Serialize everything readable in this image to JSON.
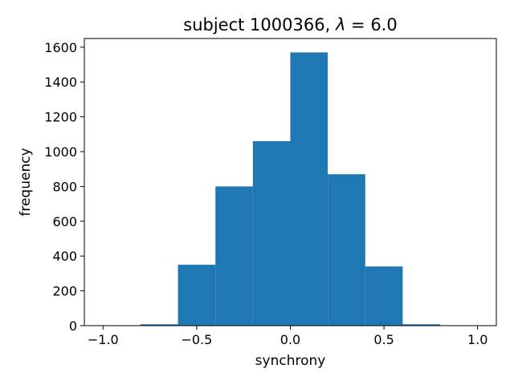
{
  "chart_data": {
    "type": "bar",
    "title_prefix": "subject 1000366, ",
    "title_lambda": "λ",
    "title_suffix": " = 6.0",
    "xlabel": "synchrony",
    "ylabel": "frequency",
    "xlim": [
      -1.1,
      1.1
    ],
    "ylim": [
      0,
      1650
    ],
    "bin_edges": [
      -1.0,
      -0.8,
      -0.6,
      -0.4,
      -0.2,
      0.0,
      0.2,
      0.4,
      0.6,
      0.8,
      1.0
    ],
    "counts": [
      0,
      8,
      350,
      800,
      1060,
      1570,
      870,
      340,
      8,
      0
    ],
    "bar_color": "#1f77b4",
    "xticks": [
      -1.0,
      -0.5,
      0.0,
      0.5,
      1.0
    ],
    "xtick_labels": [
      "−1.0",
      "−0.5",
      "0.0",
      "0.5",
      "1.0"
    ],
    "yticks": [
      0,
      200,
      400,
      600,
      800,
      1000,
      1200,
      1400,
      1600
    ],
    "ytick_labels": [
      "0",
      "200",
      "400",
      "600",
      "800",
      "1000",
      "1200",
      "1400",
      "1600"
    ],
    "grid": false,
    "legend": "none"
  }
}
